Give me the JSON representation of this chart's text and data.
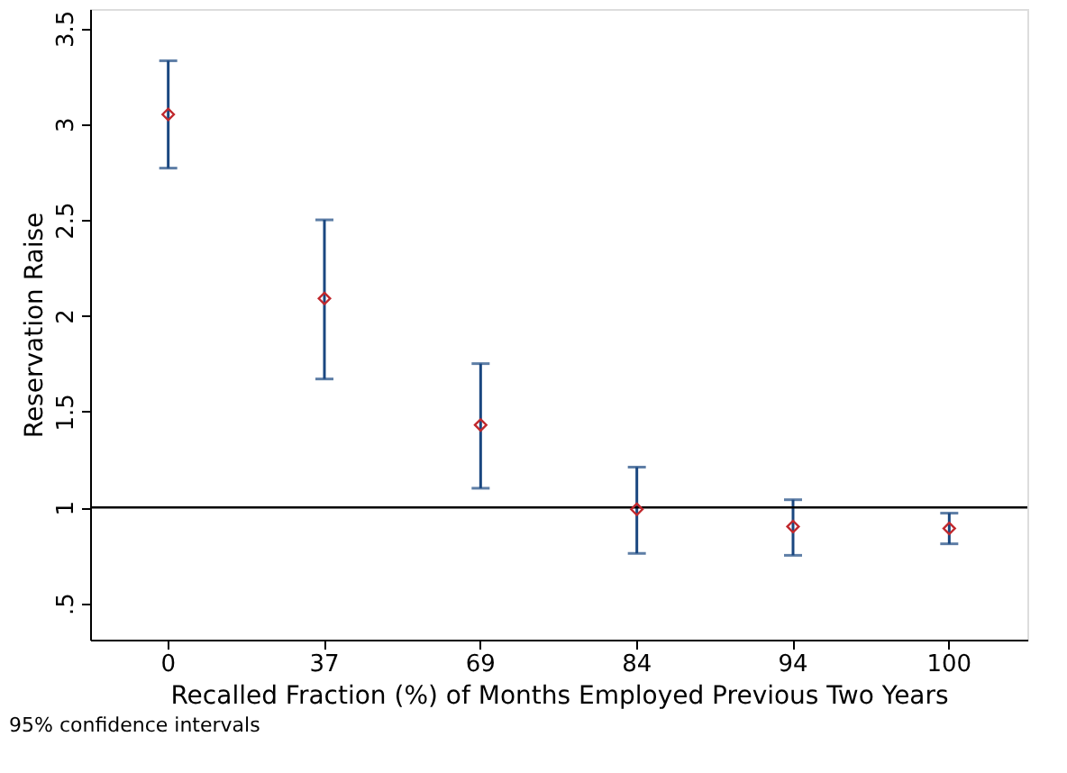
{
  "chart_data": {
    "type": "scatter",
    "xlabel": "Recalled Fraction (%) of Months Employed Previous Two Years",
    "ylabel": "Reservation Raise",
    "categories": [
      "0",
      "37",
      "69",
      "84",
      "94",
      "100"
    ],
    "series": [
      {
        "color": "#c0282d",
        "values": [
          3.05,
          2.09,
          1.43,
          0.99,
          0.9,
          0.89
        ],
        "errors": [
          [
            2.77,
            3.33
          ],
          [
            1.67,
            2.5
          ],
          [
            1.1,
            1.75
          ],
          [
            0.76,
            1.21
          ],
          [
            0.75,
            1.04
          ],
          [
            0.81,
            0.97
          ]
        ]
      }
    ],
    "marker": "diamond",
    "ylim": [
      0.31,
      3.6
    ],
    "yticks": [
      {
        "value": 0.5,
        "label": ".5"
      },
      1,
      1.5,
      2,
      2.5,
      3,
      3.5
    ],
    "ref_lines": [
      {
        "axis": "y",
        "value": 1,
        "color": "#000000"
      }
    ],
    "grid": false,
    "annotations": [
      "95% confidence intervals"
    ]
  }
}
